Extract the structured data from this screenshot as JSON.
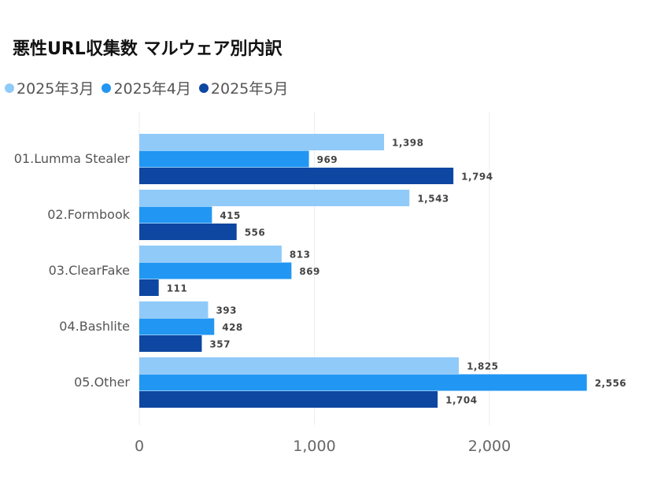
{
  "chart_data": {
    "type": "bar",
    "orientation": "horizontal",
    "title": "悪性URL収集数 マルウェア別内訳",
    "categories": [
      "01.Lumma Stealer",
      "02.Formbook",
      "03.ClearFake",
      "04.Bashlite",
      "05.Other"
    ],
    "series": [
      {
        "name": "2025年3月",
        "color": "#90caf9",
        "values": [
          1398,
          1543,
          813,
          393,
          1825
        ]
      },
      {
        "name": "2025年4月",
        "color": "#2196f3",
        "values": [
          969,
          415,
          869,
          428,
          2556
        ]
      },
      {
        "name": "2025年5月",
        "color": "#0d47a1",
        "values": [
          1794,
          556,
          111,
          357,
          1704
        ]
      }
    ],
    "xticks": [
      0,
      1000,
      2000
    ],
    "xtick_labels": [
      "0",
      "1,000",
      "2,000"
    ],
    "xlim": [
      0,
      2700
    ],
    "grid": true,
    "legend_position": "top-left",
    "xlabel": "",
    "ylabel": ""
  }
}
